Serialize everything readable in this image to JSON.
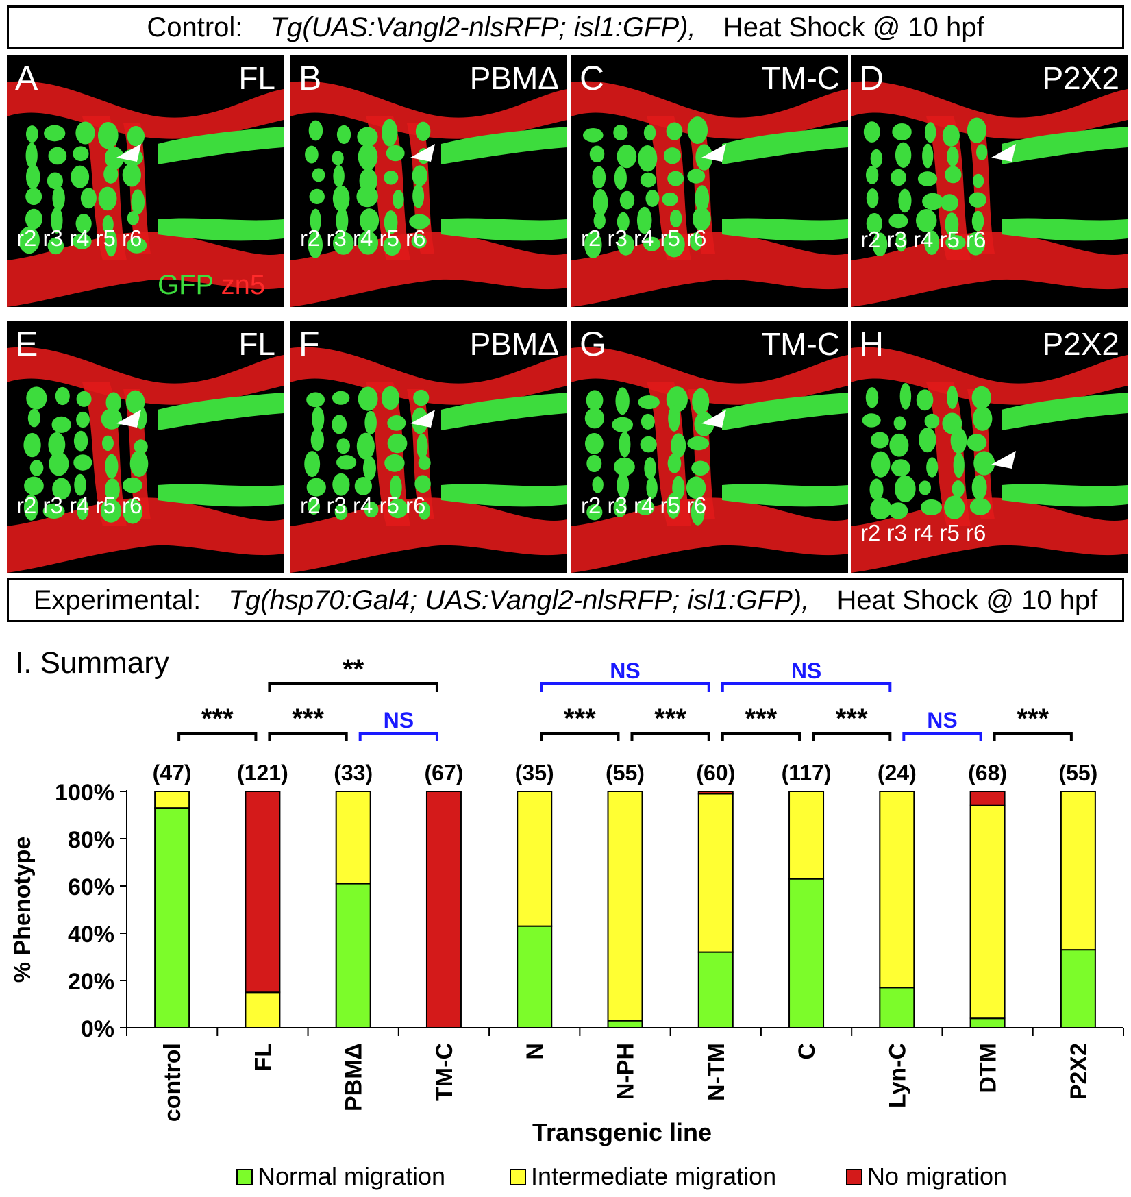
{
  "control_banner": {
    "prefix": "Control:",
    "genotype": "Tg(UAS:Vangl2-nlsRFP; isl1:GFP),",
    "treatment": "Heat Shock @ 10 hpf"
  },
  "experimental_banner": {
    "prefix": "Experimental:",
    "genotype": "Tg(hsp70:Gal4; UAS:Vangl2-nlsRFP; isl1:GFP),",
    "treatment": "Heat Shock @ 10 hpf"
  },
  "rhombomere_labels": "r2 r3 r4 r5 r6",
  "stain_legend": {
    "gfp": "GFP",
    "zn5": "zn5"
  },
  "colors": {
    "gfp": "#3ddc3d",
    "zn5": "#e01a1a",
    "normal": "#7cfc2a",
    "intermediate": "#ffff33",
    "none": "#d41a1a",
    "ns_bracket": "#1a1aff"
  },
  "panels": [
    {
      "letter": "A",
      "construct": "FL"
    },
    {
      "letter": "B",
      "construct": "PBMΔ"
    },
    {
      "letter": "C",
      "construct": "TM-C"
    },
    {
      "letter": "D",
      "construct": "P2X2"
    },
    {
      "letter": "E",
      "construct": "FL"
    },
    {
      "letter": "F",
      "construct": "PBMΔ"
    },
    {
      "letter": "G",
      "construct": "TM-C"
    },
    {
      "letter": "H",
      "construct": "P2X2"
    }
  ],
  "chart_data": {
    "type": "bar",
    "stacked": true,
    "title": "I. Summary",
    "xlabel": "Transgenic line",
    "ylabel": "% Phenotype",
    "ylim": [
      0,
      100
    ],
    "yticks": [
      "0%",
      "20%",
      "40%",
      "60%",
      "80%",
      "100%"
    ],
    "categories": [
      "control",
      "FL",
      "PBMΔ",
      "TM-C",
      "N",
      "N-PH",
      "N-TM",
      "C",
      "Lyn-C",
      "DTM",
      "P2X2"
    ],
    "counts": [
      "(47)",
      "(121)",
      "(33)",
      "(67)",
      "(35)",
      "(55)",
      "(60)",
      "(117)",
      "(24)",
      "(68)",
      "(55)"
    ],
    "series": [
      {
        "name": "Normal migration",
        "color": "#7cfc2a",
        "values": [
          93,
          0,
          61,
          0,
          43,
          3,
          32,
          63,
          17,
          4,
          33
        ]
      },
      {
        "name": "Intermediate migration",
        "color": "#ffff33",
        "values": [
          7,
          15,
          39,
          0,
          57,
          97,
          67,
          37,
          83,
          90,
          67
        ]
      },
      {
        "name": "No migration",
        "color": "#d41a1a",
        "values": [
          0,
          85,
          0,
          100,
          0,
          0,
          1,
          0,
          0,
          6,
          0
        ]
      }
    ],
    "brackets": [
      {
        "from": 1,
        "to": 3,
        "label": "**",
        "level": 2,
        "ns": false
      },
      {
        "from": 4,
        "to": 6,
        "label": "NS",
        "level": 2,
        "ns": true
      },
      {
        "from": 6,
        "to": 8,
        "label": "NS",
        "level": 2,
        "ns": true
      },
      {
        "from": 0,
        "to": 1,
        "label": "***",
        "level": 1,
        "ns": false
      },
      {
        "from": 1,
        "to": 2,
        "label": "***",
        "level": 1,
        "ns": false
      },
      {
        "from": 2,
        "to": 3,
        "label": "NS",
        "level": 1,
        "ns": true
      },
      {
        "from": 4,
        "to": 5,
        "label": "***",
        "level": 1,
        "ns": false
      },
      {
        "from": 5,
        "to": 6,
        "label": "***",
        "level": 1,
        "ns": false
      },
      {
        "from": 6,
        "to": 7,
        "label": "***",
        "level": 1,
        "ns": false
      },
      {
        "from": 7,
        "to": 8,
        "label": "***",
        "level": 1,
        "ns": false
      },
      {
        "from": 8,
        "to": 9,
        "label": "NS",
        "level": 1,
        "ns": true
      },
      {
        "from": 9,
        "to": 10,
        "label": "***",
        "level": 1,
        "ns": false
      }
    ]
  }
}
